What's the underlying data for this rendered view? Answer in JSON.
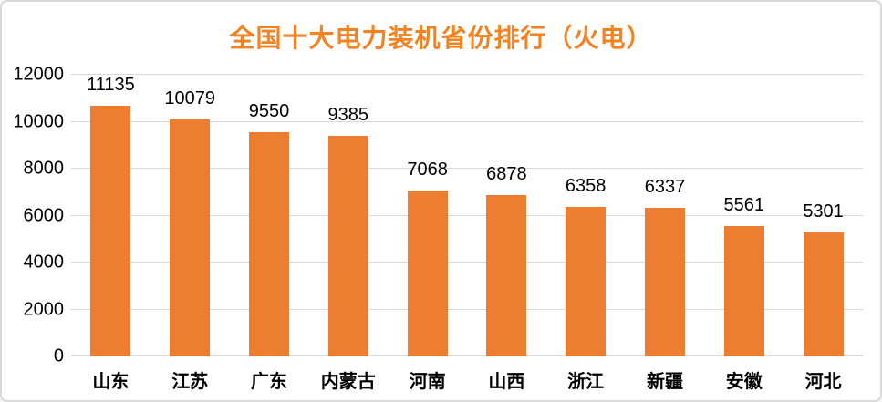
{
  "colors": {
    "title": "#F58220",
    "bar": "#ED7D31",
    "gridline": "#D9D9D9",
    "axis_text": "#000000",
    "background": "#FFFFFF",
    "border": "#D9D9D9"
  },
  "chart_data": {
    "type": "bar",
    "title": "全国十大电力装机省份排行（火电）",
    "categories": [
      "山东",
      "江苏",
      "广东",
      "内蒙古",
      "河南",
      "山西",
      "浙江",
      "新疆",
      "安徽",
      "河北"
    ],
    "values": [
      11135,
      10079,
      9550,
      9385,
      7068,
      6878,
      6358,
      6337,
      5561,
      5301
    ],
    "data_labels": [
      "11135",
      "10079",
      "9550",
      "9385",
      "7068",
      "6878",
      "6358",
      "6337",
      "5561",
      "5301"
    ],
    "xlabel": "",
    "ylabel": "",
    "ylim": [
      0,
      12000
    ],
    "yticks": [
      0,
      2000,
      4000,
      6000,
      8000,
      10000,
      12000
    ],
    "grid": true,
    "legend_position": "none",
    "data_label_position": "outside-end",
    "bar_orientation": "vertical"
  }
}
